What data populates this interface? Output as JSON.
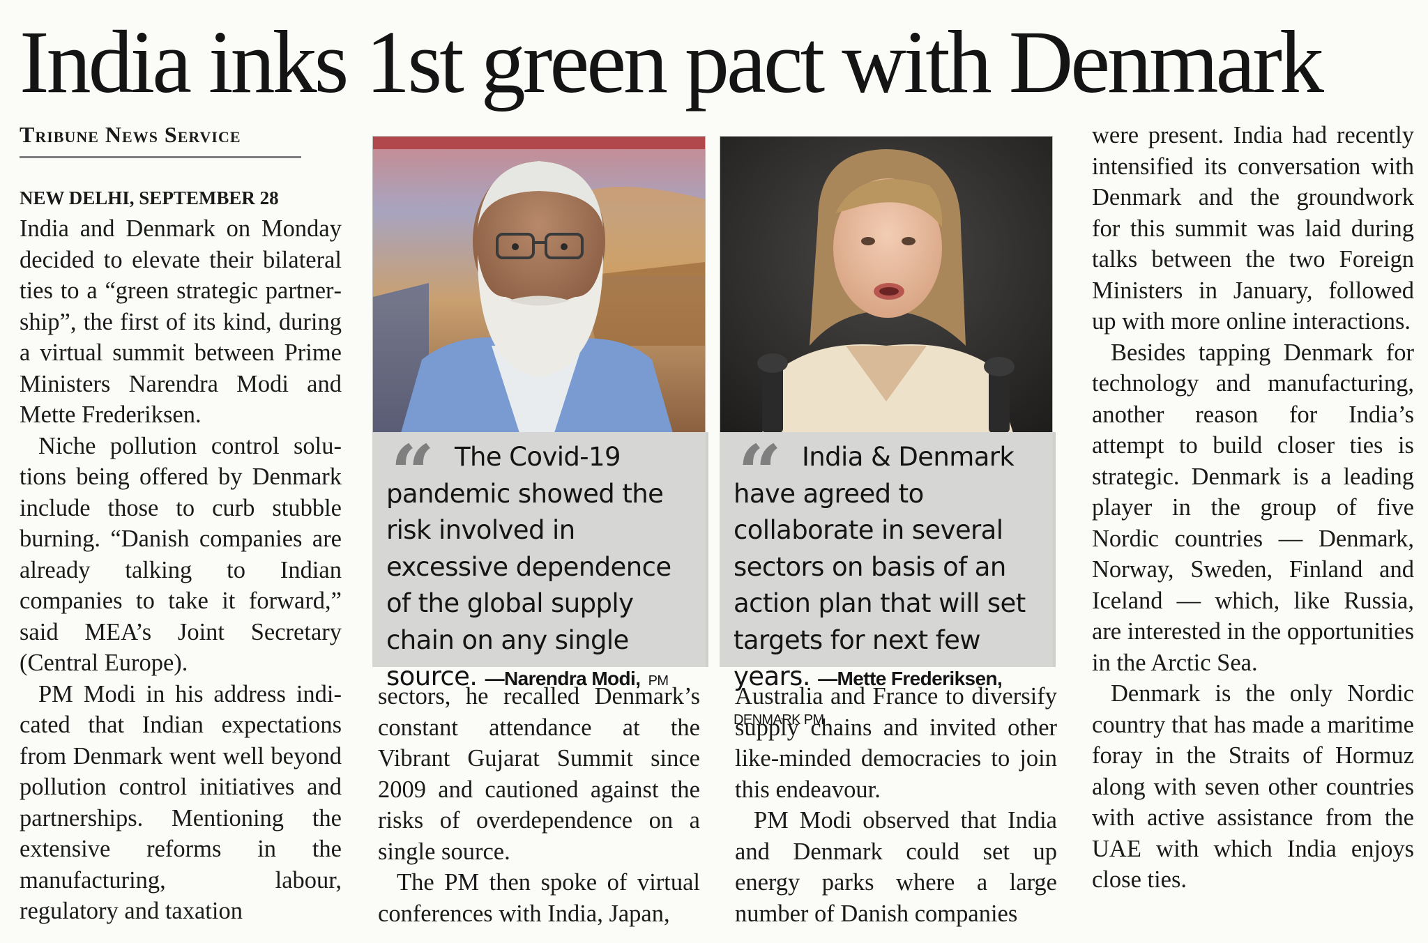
{
  "headline": "India inks 1st green pact with Denmark",
  "byline": "Tribune News Service",
  "dateline": "NEW DELHI, SEPTEMBER 28",
  "column1": [
    "India and Denmark on Monday decided to elevate their bilateral ties to a “green strategic partner­ship”, the first of its kind, during a virtual summit between Prime Ministers Narendra Modi and Mette Frederiksen.",
    "Niche pollution control solu­tions being offered by Den­mark include those to curb stubble burning. “Danish com­panies are already talking to Indian companies to take it for­ward,” said MEA’s Joint Secre­tary (Central Europe).",
    "PM Modi in his address indi­cated that Indian expectations from Denmark went well beyond pollution control ini­tiatives and partnerships. Mentioning the extensive reforms in the manufacturing, labour, regulatory and taxation"
  ],
  "column2": [
    "sectors, he recalled Den­mark’s constant attendance at the Vibrant Gujarat Summit since 2009 and cautioned against the risks of overdepen­dence on a single source.",
    "The PM then spoke of virtual conferences with India, Japan,"
  ],
  "column3": [
    "Australia and France to diversi­fy supply chains and invited other like-minded democracies to join this endeavour.",
    "PM Modi observed that India and Denmark could set up energy parks where a large number of Danish companies"
  ],
  "column4": [
    "were present. India had recently intensified its con­versation with Denmark and the groundwork for this sum­mit was laid during talks between the two Foreign Min­isters in January, followed up with more online interactions.",
    "Besides tapping Denmark for technology and manufac­turing, another reason for India’s attempt to build closer ties is strategic. Denmark is a leading player in the group of five Nordic countries — Den­mark, Norway, Sweden, Fin­land and Iceland — which, like Russia, are interested in the opportunities in the Arctic Sea.",
    "Denmark is the only Nordic country that has made a mar­itime foray in the Straits of Hormuz along with seven other countries with active assistance from the UAE with which India enjoys close ties."
  ],
  "quotes": [
    {
      "text": "The Covid-19 pandemic showed the risk involved in excessive dependence of the global supply chain on any single source.",
      "attribution": "—Narendra Modi,",
      "role": "PM"
    },
    {
      "text": "India & Denmark have agreed to collaborate in several sectors on basis of an action plan that will set targets for next few years.",
      "attribution": "—Mette Frederiksen,",
      "role": "DENMARK PM"
    }
  ],
  "quote_mark": "“",
  "colors": {
    "quote_box": "#d6d6d5",
    "quote_mark": "#7f7f7f",
    "text": "#1a1a1a"
  }
}
